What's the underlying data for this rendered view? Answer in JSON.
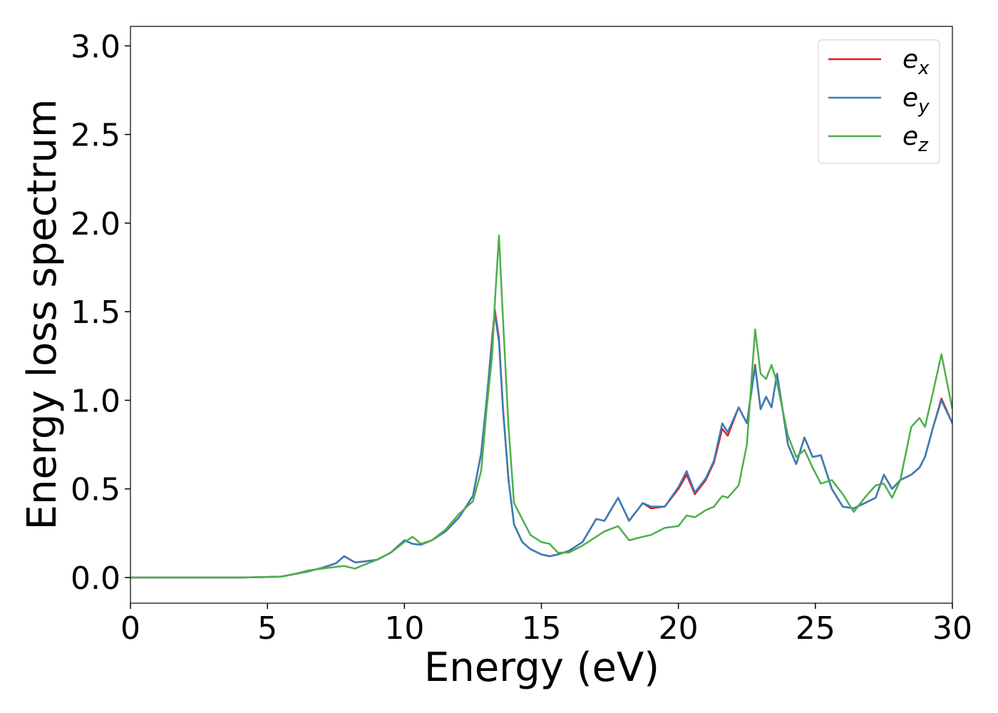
{
  "chart_data": {
    "type": "line",
    "xlabel": "Energy (eV)",
    "ylabel": "Energy loss spectrum",
    "xlim": [
      0,
      30
    ],
    "ylim": [
      -0.145,
      3.11
    ],
    "xticks": [
      0,
      5,
      10,
      15,
      20,
      25,
      30
    ],
    "yticks": [
      {
        "value": 0,
        "label": "0.0"
      },
      0.5,
      {
        "value": 1,
        "label": "1.0"
      },
      1.5,
      {
        "value": 2,
        "label": "2.0"
      },
      2.5,
      {
        "value": 3,
        "label": "3.0"
      }
    ],
    "legend": "upper right",
    "x": [
      0,
      2,
      4,
      5,
      5.5,
      6,
      6.5,
      7,
      7.5,
      7.8,
      8.2,
      8.5,
      9,
      9.5,
      10,
      10.3,
      10.6,
      11,
      11.5,
      12,
      12.5,
      12.8,
      13.0,
      13.2,
      13.3,
      13.45,
      13.6,
      13.8,
      14.0,
      14.3,
      14.6,
      15.0,
      15.3,
      15.6,
      16.0,
      16.5,
      17.0,
      17.3,
      17.8,
      18.2,
      18.7,
      19.0,
      19.5,
      20.0,
      20.3,
      20.6,
      21.0,
      21.3,
      21.6,
      21.8,
      22.2,
      22.5,
      22.8,
      23.0,
      23.2,
      23.4,
      23.6,
      24.0,
      24.3,
      24.6,
      24.9,
      25.2,
      25.6,
      26.0,
      26.4,
      26.8,
      27.2,
      27.5,
      27.8,
      28.1,
      28.5,
      28.8,
      29.0,
      29.3,
      29.6,
      30.0
    ],
    "series": [
      {
        "name": "ex",
        "color": "#e41a1c",
        "values": [
          0,
          0,
          0,
          0.003,
          0.005,
          0.02,
          0.035,
          0.055,
          0.08,
          0.12,
          0.085,
          0.09,
          0.1,
          0.14,
          0.21,
          0.19,
          0.185,
          0.21,
          0.26,
          0.34,
          0.46,
          0.7,
          1.0,
          1.35,
          1.51,
          1.35,
          0.95,
          0.55,
          0.3,
          0.2,
          0.16,
          0.13,
          0.12,
          0.13,
          0.15,
          0.2,
          0.33,
          0.32,
          0.45,
          0.32,
          0.42,
          0.39,
          0.4,
          0.5,
          0.58,
          0.47,
          0.55,
          0.65,
          0.84,
          0.8,
          0.96,
          0.87,
          1.2,
          0.95,
          1.02,
          0.96,
          1.15,
          0.75,
          0.64,
          0.79,
          0.68,
          0.69,
          0.5,
          0.4,
          0.39,
          0.42,
          0.45,
          0.58,
          0.5,
          0.55,
          0.58,
          0.62,
          0.68,
          0.85,
          1.01,
          0.87
        ]
      },
      {
        "name": "ey",
        "color": "#377eb8",
        "values": [
          0,
          0,
          0,
          0.003,
          0.005,
          0.02,
          0.035,
          0.055,
          0.08,
          0.12,
          0.085,
          0.09,
          0.1,
          0.14,
          0.21,
          0.19,
          0.185,
          0.21,
          0.26,
          0.34,
          0.46,
          0.7,
          1.0,
          1.33,
          1.49,
          1.33,
          0.94,
          0.55,
          0.3,
          0.2,
          0.16,
          0.13,
          0.12,
          0.13,
          0.15,
          0.2,
          0.33,
          0.32,
          0.45,
          0.32,
          0.42,
          0.4,
          0.4,
          0.51,
          0.6,
          0.48,
          0.56,
          0.66,
          0.87,
          0.82,
          0.96,
          0.87,
          1.19,
          0.95,
          1.02,
          0.96,
          1.15,
          0.75,
          0.64,
          0.79,
          0.68,
          0.69,
          0.5,
          0.4,
          0.39,
          0.42,
          0.45,
          0.58,
          0.5,
          0.55,
          0.58,
          0.62,
          0.68,
          0.85,
          1.0,
          0.87
        ]
      },
      {
        "name": "ez",
        "color": "#4daf4a",
        "values": [
          0,
          0,
          0,
          0.003,
          0.005,
          0.02,
          0.04,
          0.05,
          0.06,
          0.065,
          0.05,
          0.07,
          0.1,
          0.14,
          0.2,
          0.23,
          0.19,
          0.21,
          0.27,
          0.36,
          0.43,
          0.6,
          0.95,
          1.25,
          1.55,
          1.93,
          1.45,
          0.85,
          0.42,
          0.33,
          0.24,
          0.2,
          0.19,
          0.14,
          0.14,
          0.18,
          0.23,
          0.26,
          0.29,
          0.21,
          0.23,
          0.24,
          0.28,
          0.29,
          0.35,
          0.34,
          0.38,
          0.4,
          0.46,
          0.45,
          0.52,
          0.75,
          1.4,
          1.15,
          1.12,
          1.2,
          1.1,
          0.8,
          0.68,
          0.72,
          0.62,
          0.53,
          0.55,
          0.47,
          0.37,
          0.45,
          0.52,
          0.53,
          0.45,
          0.55,
          0.85,
          0.9,
          0.85,
          1.05,
          1.26,
          0.95
        ]
      }
    ]
  }
}
